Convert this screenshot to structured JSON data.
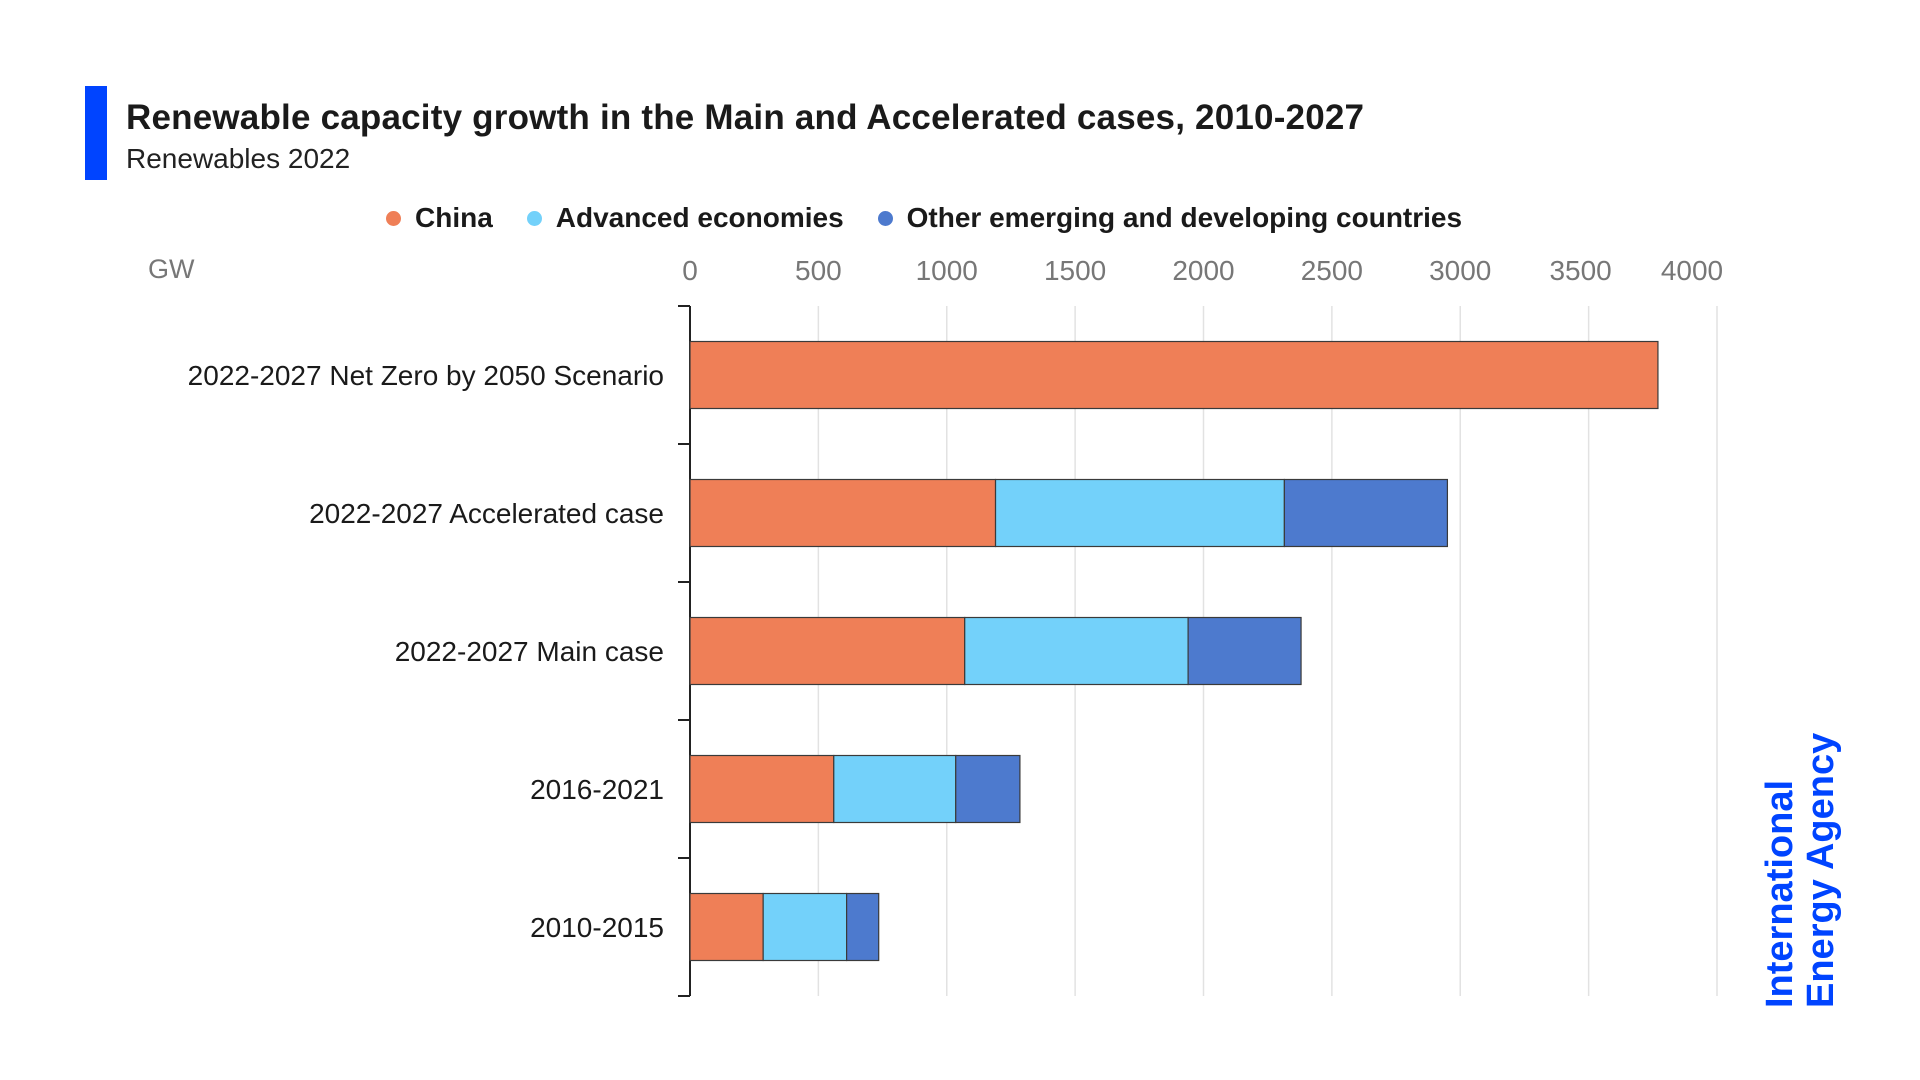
{
  "header": {
    "title": "Renewable capacity growth in the Main and Accelerated cases, 2010-2027",
    "subtitle": "Renewables 2022"
  },
  "legend": {
    "items": [
      {
        "label": "China",
        "color": "#ef7f57"
      },
      {
        "label": "Advanced economies",
        "color": "#73d1fa"
      },
      {
        "label": "Other emerging and developing countries",
        "color": "#4d7ace"
      }
    ]
  },
  "axis": {
    "unit": "GW"
  },
  "logo": {
    "line1": "International",
    "line2": "Energy Agency"
  },
  "chart_data": {
    "type": "bar",
    "orientation": "horizontal",
    "stacked": true,
    "title": "Renewable capacity growth in the Main and Accelerated cases, 2010-2027",
    "subtitle": "Renewables 2022",
    "xlabel": "GW",
    "ylabel": "",
    "xlim": [
      0,
      4000
    ],
    "xticks": [
      0,
      500,
      1000,
      1500,
      2000,
      2500,
      3000,
      3500,
      4000
    ],
    "grid": true,
    "legend_position": "top",
    "categories": [
      "2022-2027 Net Zero by 2050 Scenario",
      "2022-2027 Accelerated case",
      "2022-2027  Main case",
      "2016-2021",
      "2010-2015"
    ],
    "series": [
      {
        "name": "China",
        "color": "#ef7f57",
        "values": [
          3770,
          1190,
          1070,
          560,
          285
        ]
      },
      {
        "name": "Advanced economies",
        "color": "#73d1fa",
        "values": [
          0,
          1125,
          870,
          475,
          325
        ]
      },
      {
        "name": "Other emerging and developing countries",
        "color": "#4d7ace",
        "values": [
          0,
          635,
          440,
          250,
          125
        ]
      }
    ]
  }
}
